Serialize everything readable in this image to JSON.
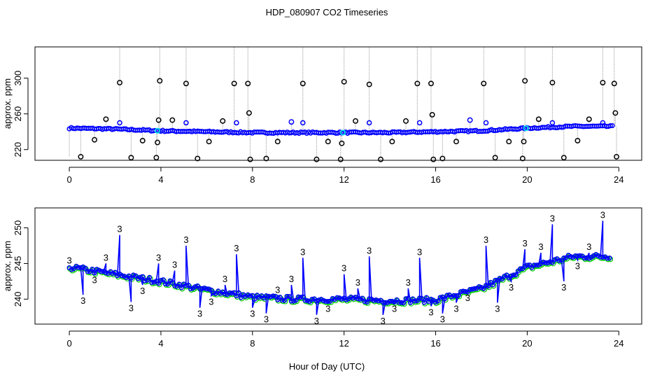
{
  "figure": {
    "title": "HDP_080907  CO2 Timeseries",
    "xlabel": "Hour of Day (UTC)"
  },
  "chart_data": [
    {
      "type": "scatter",
      "panel": "top",
      "ylabel": "approx. ppm",
      "xlim": [
        -1.5,
        25
      ],
      "ylim": [
        208,
        335
      ],
      "x_ticks": [
        0,
        4,
        8,
        12,
        16,
        20,
        24
      ],
      "x_tick_labels": [
        "0",
        "4",
        "8",
        "12",
        "16",
        "20",
        "24"
      ],
      "y_ticks": [
        220,
        260,
        300
      ],
      "y_tick_labels": [
        "220",
        "260",
        "300"
      ],
      "baseline_series": {
        "name": "blue-circles",
        "color": "#0000ff",
        "x_range": [
          0,
          23.8
        ],
        "level_points": [
          {
            "x": 0,
            "y": 244
          },
          {
            "x": 2,
            "y": 243
          },
          {
            "x": 4,
            "y": 241
          },
          {
            "x": 6,
            "y": 240
          },
          {
            "x": 8,
            "y": 239
          },
          {
            "x": 10,
            "y": 239
          },
          {
            "x": 12,
            "y": 239
          },
          {
            "x": 14,
            "y": 239
          },
          {
            "x": 16,
            "y": 240
          },
          {
            "x": 18,
            "y": 241
          },
          {
            "x": 20,
            "y": 244
          },
          {
            "x": 22,
            "y": 246
          },
          {
            "x": 23.8,
            "y": 246
          }
        ]
      },
      "outlier_series": {
        "name": "black-circles",
        "color": "#000000",
        "x": [
          0.5,
          1.1,
          1.6,
          2.2,
          2.7,
          3.2,
          3.8,
          3.85,
          3.9,
          3.95,
          4.5,
          5.1,
          5.6,
          6.1,
          6.7,
          7.2,
          7.8,
          7.85,
          7.9,
          8.6,
          9.1,
          9.7,
          10.2,
          10.8,
          11.3,
          11.85,
          11.9,
          12.0,
          12.5,
          13.1,
          13.6,
          14.1,
          14.7,
          15.2,
          15.8,
          15.85,
          15.9,
          16.3,
          16.9,
          17.5,
          18.1,
          18.6,
          19.2,
          19.8,
          19.85,
          19.9,
          20.5,
          21.1,
          21.6,
          22.2,
          22.7,
          23.3,
          23.8,
          23.85,
          23.9
        ],
        "y": [
          212,
          231,
          254,
          295,
          211,
          230,
          211,
          228,
          253,
          297,
          253,
          294,
          210,
          229,
          252,
          294,
          294,
          261,
          209,
          210,
          229,
          251,
          294,
          209,
          229,
          209,
          227,
          296,
          252,
          293,
          209,
          229,
          252,
          294,
          294,
          259,
          209,
          210,
          229,
          253,
          294,
          211,
          229,
          210,
          229,
          297,
          254,
          295,
          211,
          230,
          254,
          295,
          294,
          261,
          212
        ]
      },
      "cyan_marks_x": [
        3.85,
        11.95,
        19.95
      ]
    },
    {
      "type": "line",
      "panel": "bottom",
      "ylabel": "approx. ppm",
      "xlim": [
        -1.5,
        25
      ],
      "ylim": [
        236.5,
        252.8
      ],
      "x_ticks": [
        0,
        4,
        8,
        12,
        16,
        20,
        24
      ],
      "x_tick_labels": [
        "0",
        "4",
        "8",
        "12",
        "16",
        "20",
        "24"
      ],
      "y_ticks": [
        240,
        245,
        250
      ],
      "y_tick_labels": [
        "240",
        "245",
        "250"
      ],
      "series_name": "3",
      "line_color": "#0000ff",
      "green_color": "#00cc00",
      "label_marker_text": "3",
      "trend_points": [
        {
          "x": 0,
          "y": 244.5
        },
        {
          "x": 2,
          "y": 243.5
        },
        {
          "x": 4,
          "y": 242.5
        },
        {
          "x": 6,
          "y": 241.3
        },
        {
          "x": 8,
          "y": 240.3
        },
        {
          "x": 10,
          "y": 240.0
        },
        {
          "x": 12,
          "y": 240.0
        },
        {
          "x": 14,
          "y": 239.8
        },
        {
          "x": 16,
          "y": 239.9
        },
        {
          "x": 18,
          "y": 241.5
        },
        {
          "x": 20,
          "y": 244.5
        },
        {
          "x": 22,
          "y": 246.0
        },
        {
          "x": 23.7,
          "y": 246.0
        }
      ],
      "spikes": [
        {
          "x": 0.6,
          "y": 240.6
        },
        {
          "x": 1.1,
          "y": 243.5
        },
        {
          "x": 1.6,
          "y": 245.0
        },
        {
          "x": 2.2,
          "y": 249.0
        },
        {
          "x": 2.7,
          "y": 239.6
        },
        {
          "x": 3.2,
          "y": 242.0
        },
        {
          "x": 3.9,
          "y": 245.0
        },
        {
          "x": 4.6,
          "y": 244.0
        },
        {
          "x": 5.1,
          "y": 247.5
        },
        {
          "x": 5.7,
          "y": 238.8
        },
        {
          "x": 6.2,
          "y": 240.5
        },
        {
          "x": 6.8,
          "y": 242.0
        },
        {
          "x": 7.3,
          "y": 246.3
        },
        {
          "x": 8.0,
          "y": 238.8
        },
        {
          "x": 8.6,
          "y": 238.0
        },
        {
          "x": 9.1,
          "y": 240.5
        },
        {
          "x": 9.7,
          "y": 242.0
        },
        {
          "x": 10.2,
          "y": 245.8
        },
        {
          "x": 10.8,
          "y": 237.8
        },
        {
          "x": 11.3,
          "y": 239.5
        },
        {
          "x": 12.0,
          "y": 243.5
        },
        {
          "x": 12.6,
          "y": 241.5
        },
        {
          "x": 13.1,
          "y": 246.0
        },
        {
          "x": 13.7,
          "y": 237.8
        },
        {
          "x": 14.2,
          "y": 239.5
        },
        {
          "x": 14.8,
          "y": 241.5
        },
        {
          "x": 15.3,
          "y": 245.8
        },
        {
          "x": 15.8,
          "y": 239.0
        },
        {
          "x": 16.3,
          "y": 238.0
        },
        {
          "x": 16.9,
          "y": 239.5
        },
        {
          "x": 17.4,
          "y": 241.0
        },
        {
          "x": 18.2,
          "y": 247.5
        },
        {
          "x": 18.7,
          "y": 239.5
        },
        {
          "x": 19.3,
          "y": 242.5
        },
        {
          "x": 19.9,
          "y": 247.0
        },
        {
          "x": 20.6,
          "y": 246.5
        },
        {
          "x": 21.1,
          "y": 250.5
        },
        {
          "x": 21.6,
          "y": 242.5
        },
        {
          "x": 22.2,
          "y": 245.5
        },
        {
          "x": 22.7,
          "y": 246.5
        },
        {
          "x": 23.3,
          "y": 251.0
        }
      ]
    }
  ]
}
